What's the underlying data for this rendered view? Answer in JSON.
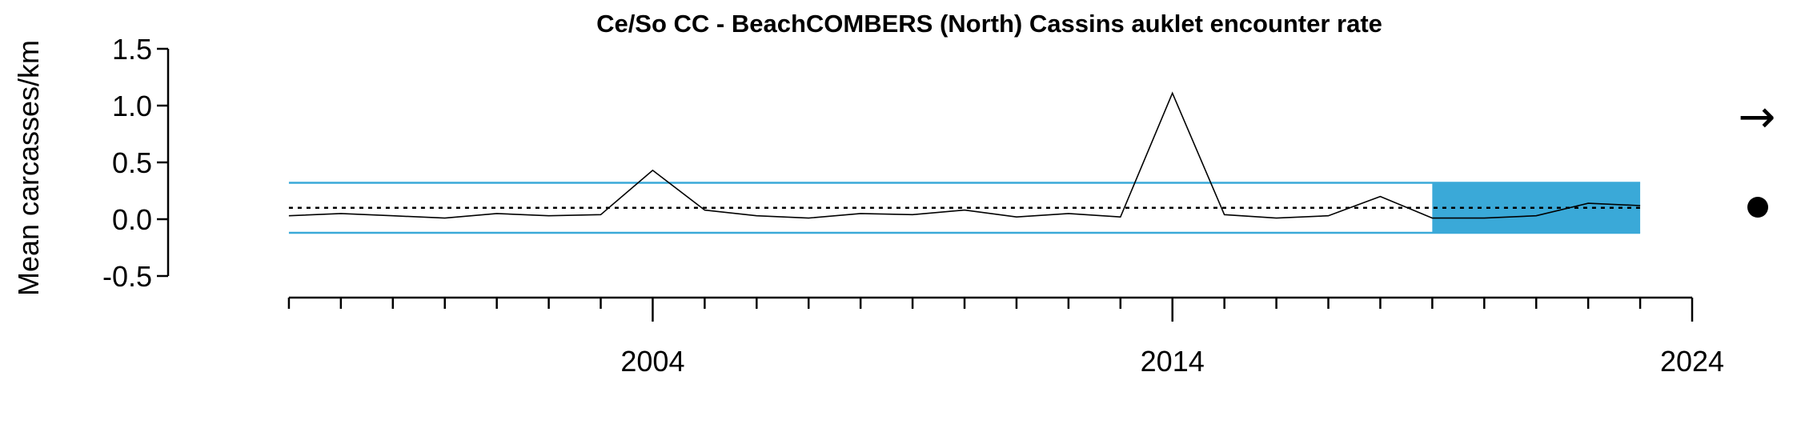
{
  "chart_data": {
    "type": "line",
    "title": "Ce/So CC - BeachCOMBERS (North) Cassins auklet encounter rate",
    "ylabel": "Mean carcasses/km",
    "xlabel": "",
    "xlim": [
      1996,
      2024
    ],
    "ylim": [
      -0.5,
      1.5
    ],
    "y_ticks": [
      -0.5,
      0.0,
      0.5,
      1.0,
      1.5
    ],
    "y_tick_labels": [
      "-0.5",
      "0.0",
      "0.5",
      "1.0",
      "1.5"
    ],
    "x_major_ticks": [
      2004,
      2014,
      2024
    ],
    "x_minor_tick_range": [
      1997,
      2024
    ],
    "grid": false,
    "series": [
      {
        "x": [
          1997,
          1998,
          1999,
          2000,
          2001,
          2002,
          2003,
          2004,
          2005,
          2006,
          2007,
          2008,
          2009,
          2010,
          2011,
          2012,
          2013,
          2014,
          2015,
          2016,
          2017,
          2018,
          2019,
          2020,
          2021,
          2022,
          2023
        ],
        "values": [
          0.03,
          0.05,
          0.03,
          0.01,
          0.05,
          0.03,
          0.04,
          0.43,
          0.08,
          0.03,
          0.01,
          0.05,
          0.04,
          0.08,
          0.02,
          0.05,
          0.02,
          1.11,
          0.04,
          0.01,
          0.03,
          0.2,
          0.01,
          0.01,
          0.03,
          0.14,
          0.12
        ]
      }
    ],
    "mean_line": 0.1,
    "sd_upper": 0.32,
    "sd_lower": -0.12,
    "recent_window": [
      2019,
      2023
    ],
    "indicators": {
      "trend": "→",
      "mean_status": "●"
    },
    "colors": {
      "sd_lines": "#3aa9d8",
      "recent_fill": "#3aa9d8",
      "series": "#000000"
    }
  }
}
